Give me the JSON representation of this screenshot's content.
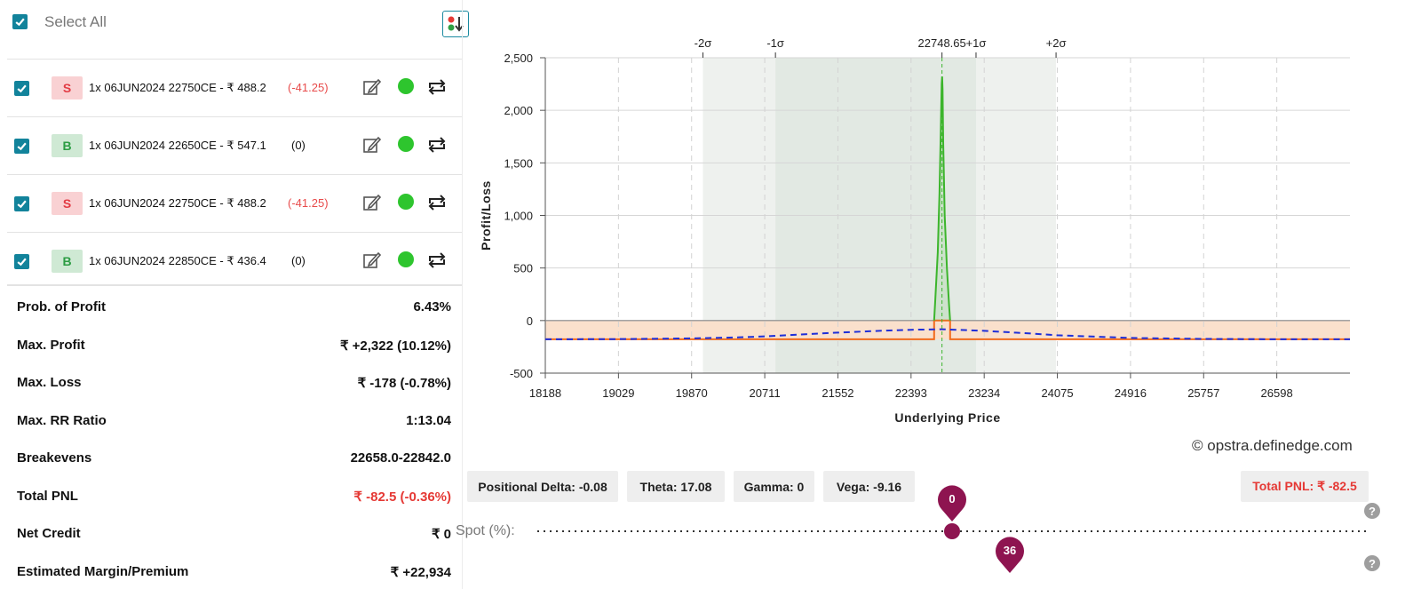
{
  "select_all": {
    "label": "Select All",
    "checked": true
  },
  "legs": [
    {
      "side": "S",
      "text": "1x  06JUN2024  22750CE  - ₹ 488.2",
      "change": "(-41.25)",
      "checked": true,
      "status": "active"
    },
    {
      "side": "B",
      "text": "1x  06JUN2024  22650CE  - ₹ 547.1",
      "change": "(0)",
      "checked": true,
      "status": "active"
    },
    {
      "side": "S",
      "text": "1x  06JUN2024  22750CE  - ₹ 488.2",
      "change": "(-41.25)",
      "checked": true,
      "status": "active"
    },
    {
      "side": "B",
      "text": "1x  06JUN2024  22850CE  - ₹ 436.4",
      "change": "(0)",
      "checked": true,
      "status": "active"
    }
  ],
  "stats": [
    {
      "label": "Prob. of Profit",
      "value": "6.43%"
    },
    {
      "label": "Max. Profit",
      "value": "₹ +2,322 (10.12%)"
    },
    {
      "label": "Max. Loss",
      "value": "₹ -178 (-0.78%)"
    },
    {
      "label": "Max. RR Ratio",
      "value": "1:13.04"
    },
    {
      "label": "Breakevens",
      "value": "22658.0-22842.0"
    },
    {
      "label": "Total PNL",
      "value": "₹ -82.5 (-0.36%)"
    },
    {
      "label": "Net Credit",
      "value": "₹ 0"
    },
    {
      "label": "Estimated Margin/Premium",
      "value": "₹ +22,934"
    }
  ],
  "chart_data": {
    "type": "line",
    "xlabel": "Underlying Price",
    "ylabel": "Profit/Loss",
    "xlim": [
      18188,
      27439
    ],
    "ylim": [
      -500,
      2500
    ],
    "x_ticks": [
      18188,
      19029,
      19870,
      20711,
      21552,
      22393,
      23234,
      24075,
      24916,
      25757,
      26598
    ],
    "y_ticks": [
      -500,
      0,
      500,
      1000,
      1500,
      2000,
      2500
    ],
    "y_tick_labels": [
      "-500",
      "0",
      "500",
      "1,000",
      "1,500",
      "2,000",
      "2,500"
    ],
    "sigma_markers": [
      {
        "label": "-2σ",
        "x": 20000
      },
      {
        "label": "-1σ",
        "x": 20834
      },
      {
        "label": "22748.65",
        "x": 22748.65
      },
      {
        "label": "+1σ",
        "x": 23140
      },
      {
        "label": "+2σ",
        "x": 24060
      }
    ],
    "bands": [
      {
        "from": 20000,
        "to": 24060,
        "color": "#eef1ee"
      },
      {
        "from": 20834,
        "to": 23140,
        "color": "#e2e9e3"
      }
    ],
    "loss_region": {
      "from": 0,
      "to": -178,
      "color": "#fae0cc"
    },
    "series": [
      {
        "style": "expiry",
        "color": "#f26b1d",
        "x": [
          18188,
          22658,
          22658,
          22842,
          22842,
          27439
        ],
        "y": [
          -178,
          -178,
          0,
          0,
          -178,
          -178
        ]
      },
      {
        "style": "expiry-profit",
        "color": "#3cb52c",
        "x": [
          22658,
          22668,
          22700,
          22720,
          22735,
          22745,
          22750,
          22755,
          22762,
          22780,
          22805,
          22830,
          22842
        ],
        "y": [
          0,
          150,
          650,
          1200,
          1800,
          2250,
          2322,
          2200,
          1700,
          1000,
          500,
          150,
          0
        ]
      },
      {
        "style": "target",
        "color": "#1f2fd8",
        "x": [
          18188,
          19029,
          19870,
          20400,
          20711,
          21300,
          21552,
          22100,
          22393,
          22748.65,
          23234,
          23800,
          24075,
          24916,
          25757,
          26598,
          27439
        ],
        "y": [
          -178,
          -176,
          -170,
          -160,
          -150,
          -125,
          -115,
          -95,
          -88,
          -82.5,
          -98,
          -125,
          -140,
          -165,
          -175,
          -178,
          -178
        ]
      }
    ],
    "spot_x": 22748.65,
    "grid": true
  },
  "watermark": "opstra.definedge.com",
  "greeks": [
    {
      "label": "Positional Delta: -0.08"
    },
    {
      "label": "Theta: 17.08"
    },
    {
      "label": "Gamma: 0"
    },
    {
      "label": "Vega: -9.16"
    }
  ],
  "total_pnl_chip": "Total PNL: ₹ -82.5",
  "spot_slider": {
    "label": "Spot (%):",
    "value": "0",
    "fraction": 0.5
  },
  "days_slider": {
    "value": "36",
    "fraction": 0.57
  },
  "help": "?",
  "colors": {
    "accent": "#12839b",
    "slider": "#8e1450",
    "profit": "#3cb52c",
    "loss": "#f26b1d",
    "target": "#1f2fd8",
    "pnl_red": "#e53935"
  }
}
